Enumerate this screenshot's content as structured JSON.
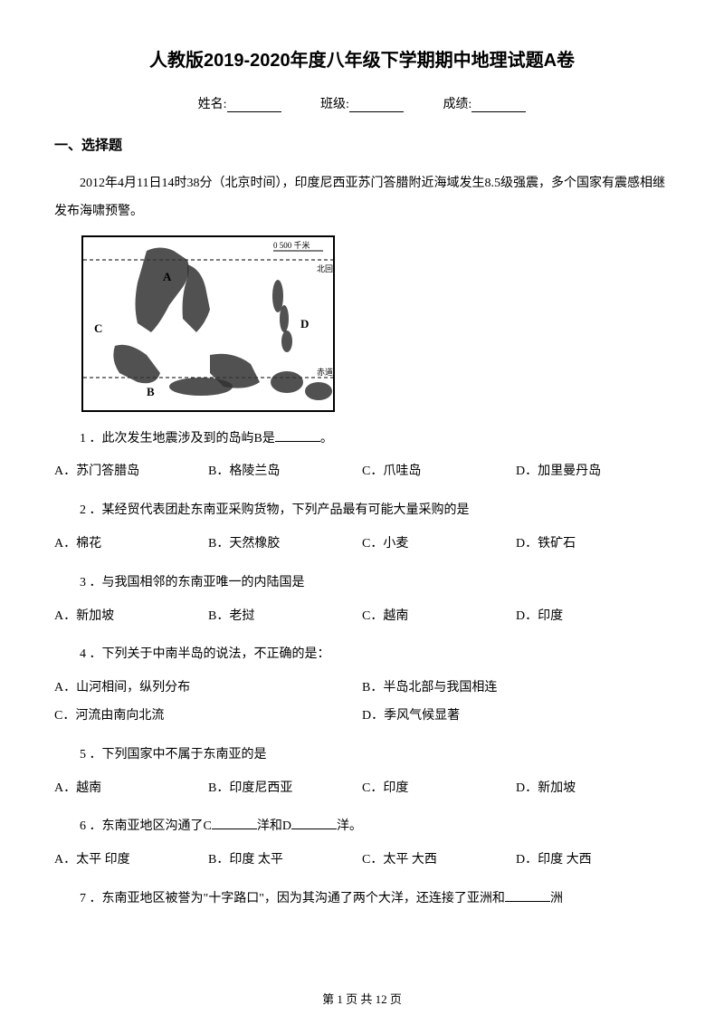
{
  "title": "人教版2019-2020年度八年级下学期期中地理试题A卷",
  "header": {
    "name_label": "姓名:",
    "class_label": "班级:",
    "score_label": "成绩:"
  },
  "section1": {
    "heading": "一、选择题",
    "intro": "2012年4月11日14时38分（北京时间），印度尼西亚苏门答腊附近海域发生8.5级强震，多个国家有震感相继发布海啸预警。"
  },
  "map": {
    "scale_label": "0  500 千米",
    "tropic_label": "北回归线",
    "equator_label": "赤道",
    "labels": {
      "A": "A",
      "B": "B",
      "C": "C",
      "D": "D"
    }
  },
  "questions": [
    {
      "num": "1",
      "text_before": "．此次发生地震涉及到的岛屿B是",
      "text_after": "。",
      "has_blank": true,
      "layout": "four",
      "opts": [
        {
          "k": "A",
          "v": "．苏门答腊岛"
        },
        {
          "k": "B",
          "v": "．格陵兰岛"
        },
        {
          "k": "C",
          "v": "．爪哇岛"
        },
        {
          "k": "D",
          "v": "．加里曼丹岛"
        }
      ]
    },
    {
      "num": "2",
      "text_before": "．某经贸代表团赴东南亚采购货物，下列产品最有可能大量采购的是",
      "text_after": "",
      "has_blank": false,
      "layout": "four",
      "opts": [
        {
          "k": "A",
          "v": "．棉花"
        },
        {
          "k": "B",
          "v": "．天然橡胶"
        },
        {
          "k": "C",
          "v": "．小麦"
        },
        {
          "k": "D",
          "v": "．铁矿石"
        }
      ]
    },
    {
      "num": "3",
      "text_before": "．与我国相邻的东南亚唯一的内陆国是",
      "text_after": "",
      "has_blank": false,
      "layout": "four",
      "opts": [
        {
          "k": "A",
          "v": "．新加坡"
        },
        {
          "k": "B",
          "v": "．老挝"
        },
        {
          "k": "C",
          "v": "．越南"
        },
        {
          "k": "D",
          "v": "．印度"
        }
      ]
    },
    {
      "num": "4",
      "text_before": "．下列关于中南半岛的说法，不正确的是：",
      "text_after": "",
      "has_blank": false,
      "layout": "two",
      "opts": [
        {
          "k": "A",
          "v": "．山河相间，纵列分布"
        },
        {
          "k": "B",
          "v": "．半岛北部与我国相连"
        },
        {
          "k": "C",
          "v": "．河流由南向北流"
        },
        {
          "k": "D",
          "v": "．季风气候显著"
        }
      ]
    },
    {
      "num": "5",
      "text_before": "．下列国家中不属于东南亚的是",
      "text_after": "",
      "has_blank": false,
      "layout": "four",
      "opts": [
        {
          "k": "A",
          "v": "．越南"
        },
        {
          "k": "B",
          "v": "．印度尼西亚"
        },
        {
          "k": "C",
          "v": "．印度"
        },
        {
          "k": "D",
          "v": "．新加坡"
        }
      ]
    },
    {
      "num": "6",
      "text_before": "．东南亚地区沟通了C",
      "text_mid": "洋和D",
      "text_after": "洋。",
      "has_blank": false,
      "has_double_blank": true,
      "layout": "four",
      "opts": [
        {
          "k": "A",
          "v": "．太平  印度"
        },
        {
          "k": "B",
          "v": "．印度  太平"
        },
        {
          "k": "C",
          "v": "．太平 大西"
        },
        {
          "k": "D",
          "v": "．印度 大西"
        }
      ]
    },
    {
      "num": "7",
      "text_before": "．东南亚地区被誉为\"十字路口\"，因为其沟通了两个大洋，还连接了亚洲和",
      "text_after": "洲",
      "has_blank": true,
      "layout": "none",
      "opts": []
    }
  ],
  "pager": {
    "text_before": "第 ",
    "current": "1",
    "text_mid": " 页 共 ",
    "total": "12",
    "text_after": " 页"
  }
}
